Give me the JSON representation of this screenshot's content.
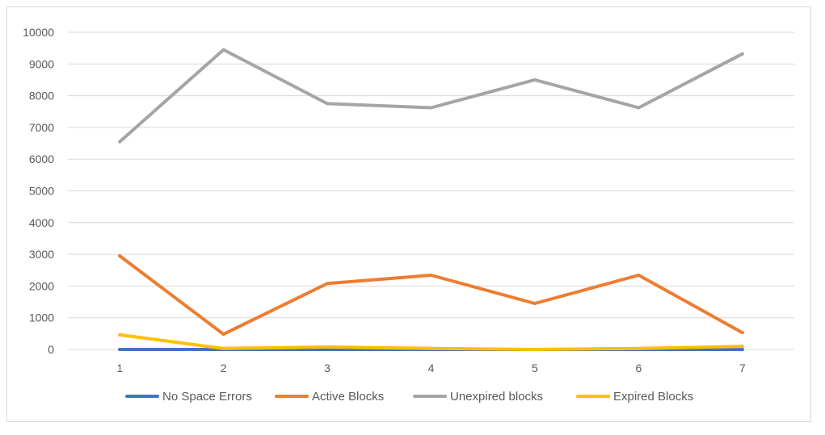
{
  "chart_data": {
    "type": "line",
    "title": "",
    "xlabel": "",
    "ylabel": "",
    "x": [
      1,
      2,
      3,
      4,
      5,
      6,
      7
    ],
    "ylim": [
      0,
      10000
    ],
    "yticks": [
      0,
      1000,
      2000,
      3000,
      4000,
      5000,
      6000,
      7000,
      8000,
      9000,
      10000
    ],
    "grid": "horizontal",
    "legend_position": "bottom",
    "series": [
      {
        "name": "No Space Errors",
        "color": "#4472c4",
        "values": [
          0,
          0,
          0,
          0,
          0,
          0,
          0
        ]
      },
      {
        "name": "Active Blocks",
        "color": "#ed7d31",
        "values": [
          2950,
          480,
          2080,
          2340,
          1450,
          2340,
          530
        ]
      },
      {
        "name": "Unexpired blocks",
        "color": "#a5a5a5",
        "values": [
          6550,
          9450,
          7750,
          7620,
          8500,
          7620,
          9320
        ]
      },
      {
        "name": "Expired Blocks",
        "color": "#ffc000",
        "values": [
          460,
          30,
          80,
          30,
          0,
          30,
          100
        ]
      }
    ]
  }
}
